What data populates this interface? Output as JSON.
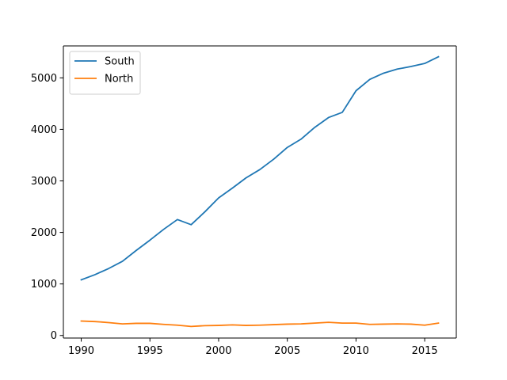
{
  "chart_data": {
    "type": "line",
    "title": "",
    "xlabel": "",
    "ylabel": "",
    "xlim": [
      1988.7,
      2017.3
    ],
    "ylim": [
      -50,
      5620
    ],
    "x_ticks": [
      1990,
      1995,
      2000,
      2005,
      2010,
      2015
    ],
    "y_ticks": [
      0,
      1000,
      2000,
      3000,
      4000,
      5000
    ],
    "grid": false,
    "legend_position": "upper-left",
    "x": [
      1990,
      1991,
      1992,
      1993,
      1994,
      1995,
      1996,
      1997,
      1998,
      1999,
      2000,
      2001,
      2002,
      2003,
      2004,
      2005,
      2006,
      2007,
      2008,
      2009,
      2010,
      2011,
      2012,
      2013,
      2014,
      2015,
      2016
    ],
    "series": [
      {
        "name": "South",
        "color": "#1f77b4",
        "values": [
          1080,
          1180,
          1300,
          1440,
          1650,
          1850,
          2060,
          2250,
          2150,
          2400,
          2670,
          2860,
          3060,
          3220,
          3420,
          3650,
          3810,
          4040,
          4230,
          4330,
          4750,
          4970,
          5090,
          5170,
          5220,
          5280,
          5410
        ]
      },
      {
        "name": "North",
        "color": "#ff7f0e",
        "values": [
          280,
          270,
          250,
          225,
          235,
          235,
          215,
          200,
          175,
          190,
          195,
          205,
          195,
          200,
          210,
          220,
          225,
          240,
          255,
          240,
          240,
          215,
          220,
          225,
          220,
          200,
          240
        ]
      }
    ]
  }
}
